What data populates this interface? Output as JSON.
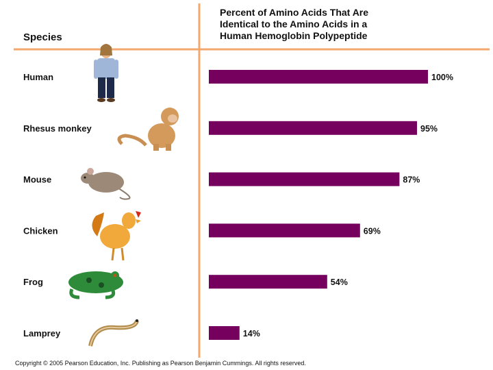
{
  "chart_data": {
    "type": "bar",
    "orientation": "horizontal",
    "title_lines": [
      "Percent of Amino Acids That Are",
      "Identical to the Amino Acids in a",
      "Human Hemoglobin Polypeptide"
    ],
    "category_header": "Species",
    "categories": [
      "Human",
      "Rhesus monkey",
      "Mouse",
      "Chicken",
      "Frog",
      "Lamprey"
    ],
    "values": [
      100,
      95,
      87,
      69,
      54,
      14
    ],
    "value_labels": [
      "100%",
      "95%",
      "87%",
      "69%",
      "54%",
      "14%"
    ],
    "xlim": [
      0,
      100
    ],
    "grid": false,
    "icons": [
      "human-icon",
      "monkey-icon",
      "mouse-icon",
      "chicken-icon",
      "frog-icon",
      "lamprey-icon"
    ]
  },
  "colors": {
    "bar": "#76005e",
    "divider": "#f2a86e"
  },
  "footer": {
    "copyright": "Copyright © 2005 Pearson Education, Inc. Publishing as Pearson Benjamin Cummings. All rights reserved."
  }
}
